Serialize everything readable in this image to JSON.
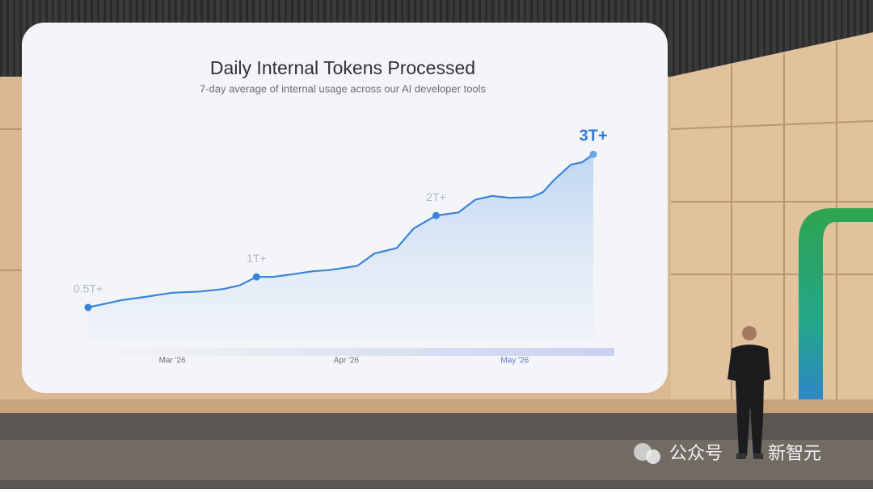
{
  "chart_data": {
    "type": "line",
    "title": "Daily Internal Tokens Processed",
    "subtitle": "7-day average of internal usage across our AI developer tools",
    "x": [
      0,
      6,
      10,
      15,
      20,
      24,
      27,
      30,
      33,
      37,
      40,
      43,
      48,
      51,
      55,
      58,
      62,
      66,
      69,
      72,
      75,
      79,
      81,
      83,
      86,
      88,
      90
    ],
    "values": [
      0.5,
      0.62,
      0.67,
      0.74,
      0.76,
      0.8,
      0.86,
      1,
      1.0,
      1.05,
      1.09,
      1.11,
      1.18,
      1.38,
      1.47,
      1.79,
      2,
      2.05,
      2.26,
      2.32,
      2.29,
      2.3,
      2.38,
      2.58,
      2.83,
      2.87,
      3
    ],
    "value_labels": [
      "0.5T+",
      null,
      null,
      null,
      null,
      null,
      null,
      "1T+",
      null,
      null,
      null,
      null,
      null,
      null,
      null,
      null,
      "2T+",
      null,
      null,
      null,
      null,
      null,
      null,
      null,
      null,
      null,
      "3T+"
    ],
    "color": "#3a84d8",
    "xlim": [
      0,
      90
    ],
    "xticks": [
      {
        "value": 15,
        "label": "Mar '26"
      },
      {
        "value": 46,
        "label": "Apr '26"
      },
      {
        "value": 76,
        "label": "May '26"
      }
    ],
    "ylim": [
      0,
      3.2
    ],
    "grid": false
  },
  "watermark": {
    "source": "公众号",
    "name": "新智元"
  }
}
